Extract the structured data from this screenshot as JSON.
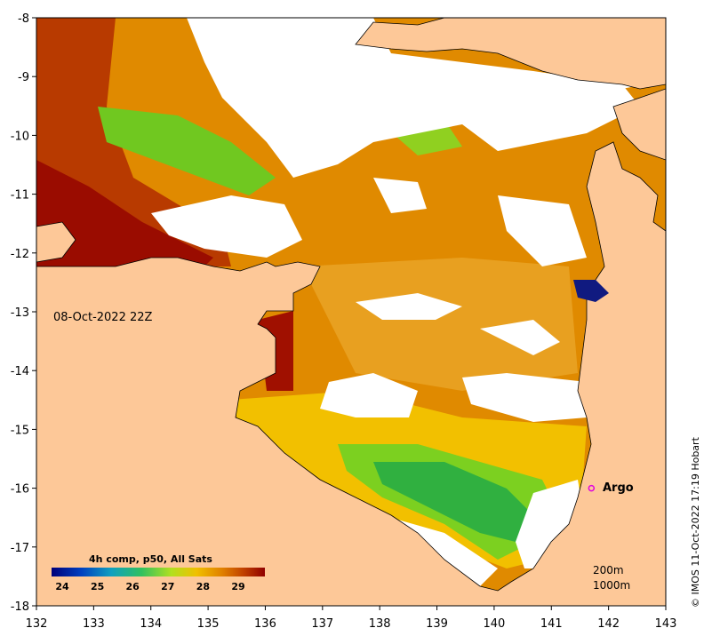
{
  "map": {
    "timestamp": "08-Oct-2022 22Z",
    "credit": "© IMOS 11-Oct-2022 17:19 Hobart",
    "x_ticks": [
      "132",
      "133",
      "134",
      "135",
      "136",
      "137",
      "138",
      "139",
      "140",
      "141",
      "142",
      "143"
    ],
    "y_ticks": [
      "-8",
      "-9",
      "-10",
      "-11",
      "-12",
      "-13",
      "-14",
      "-15",
      "-16",
      "-17",
      "-18"
    ],
    "marker": {
      "label": "Argo",
      "lon": 141.7,
      "lat": -16.0,
      "color": "#e000e0"
    },
    "depth_labels": {
      "d200": "200m",
      "d1000": "1000m"
    },
    "colorbar": {
      "title": "4h comp, p50, All Sats",
      "ticks": [
        "24",
        "25",
        "26",
        "27",
        "28",
        "29"
      ],
      "colors": [
        "#00007a",
        "#0040c0",
        "#10a0c0",
        "#30c060",
        "#b0e020",
        "#f0c000",
        "#e08000",
        "#c04000",
        "#900000"
      ]
    },
    "colors": {
      "land": "#fdc898",
      "cloud": "#ffffff",
      "sst_warm": "#e08a00"
    }
  }
}
